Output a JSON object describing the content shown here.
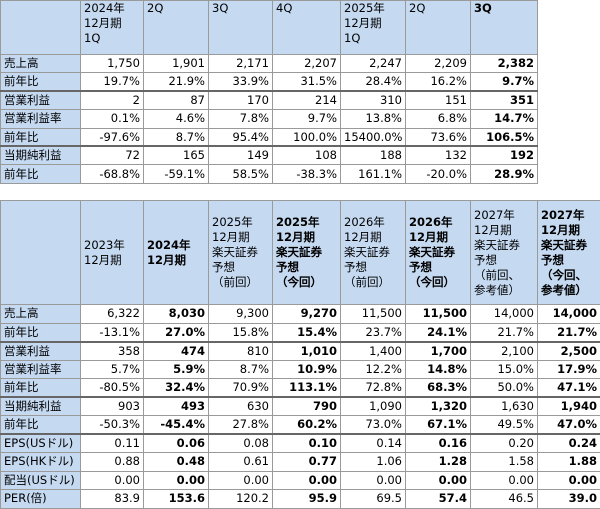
{
  "table1": {
    "header": [
      [
        "2024年",
        "12月期",
        "1Q"
      ],
      [
        "2Q"
      ],
      [
        "3Q"
      ],
      [
        "4Q"
      ],
      [
        "2025年",
        "12月期",
        "1Q"
      ],
      [
        "2Q"
      ],
      [
        "3Q"
      ]
    ],
    "rows": [
      [
        "売上高",
        "1,750",
        "1,901",
        "2,171",
        "2,207",
        "2,247",
        "2,209",
        "2,382"
      ],
      [
        "前年比",
        "19.7%",
        "21.9%",
        "33.9%",
        "31.5%",
        "28.4%",
        "16.2%",
        "9.7%"
      ],
      [
        "営業利益",
        "2",
        "87",
        "170",
        "214",
        "310",
        "151",
        "351"
      ],
      [
        "営業利益率",
        "0.1%",
        "4.6%",
        "7.8%",
        "9.7%",
        "13.8%",
        "6.8%",
        "14.7%"
      ],
      [
        "前年比",
        "-97.6%",
        "8.7%",
        "95.4%",
        "100.0%",
        "15400.0%",
        "73.6%",
        "106.5%"
      ],
      [
        "当期純利益",
        "72",
        "165",
        "149",
        "108",
        "188",
        "132",
        "192"
      ],
      [
        "前年比",
        "-68.8%",
        "-59.1%",
        "58.5%",
        "-38.3%",
        "161.1%",
        "-20.0%",
        "28.9%"
      ]
    ]
  },
  "table2": {
    "header": [
      [
        "2023年",
        "12月期"
      ],
      [
        "2024年",
        "12月期"
      ],
      [
        "2025年",
        "12月期",
        "楽天証券",
        "予想",
        "（前回）"
      ],
      [
        "2025年",
        "12月期",
        "楽天証券",
        "予想",
        "（今回）"
      ],
      [
        "2026年",
        "12月期",
        "楽天証券",
        "予想",
        "（前回）"
      ],
      [
        "2026年",
        "12月期",
        "楽天証券",
        "予想",
        "（今回）"
      ],
      [
        "2027年",
        "12月期",
        "楽天証券",
        "予想",
        "（前回、",
        "参考値）"
      ],
      [
        "2027年",
        "12月期",
        "楽天証券",
        "予想",
        "（今回、",
        "参考値）"
      ]
    ],
    "rows": [
      [
        "売上高",
        "6,322",
        "8,030",
        "9,300",
        "9,270",
        "11,500",
        "11,500",
        "14,000",
        "14,000"
      ],
      [
        "前年比",
        "-13.1%",
        "27.0%",
        "15.8%",
        "15.4%",
        "23.7%",
        "24.1%",
        "21.7%",
        "21.7%"
      ],
      [
        "営業利益",
        "358",
        "474",
        "810",
        "1,010",
        "1,400",
        "1,700",
        "2,100",
        "2,500"
      ],
      [
        "営業利益率",
        "5.7%",
        "5.9%",
        "8.7%",
        "10.9%",
        "12.2%",
        "14.8%",
        "15.0%",
        "17.9%"
      ],
      [
        "前年比",
        "-80.5%",
        "32.4%",
        "70.9%",
        "113.1%",
        "72.8%",
        "68.3%",
        "50.0%",
        "47.1%"
      ],
      [
        "当期純利益",
        "903",
        "493",
        "630",
        "790",
        "1,090",
        "1,320",
        "1,630",
        "1,940"
      ],
      [
        "前年比",
        "-50.3%",
        "-45.4%",
        "27.8%",
        "60.2%",
        "73.0%",
        "67.1%",
        "49.5%",
        "47.0%"
      ],
      [
        "EPS(USドル)",
        "0.11",
        "0.06",
        "0.08",
        "0.10",
        "0.14",
        "0.16",
        "0.20",
        "0.24"
      ],
      [
        "EPS(HKドル)",
        "0.88",
        "0.48",
        "0.61",
        "0.77",
        "1.06",
        "1.28",
        "1.58",
        "1.88"
      ],
      [
        "配当(USドル)",
        "0.00",
        "0.00",
        "0.00",
        "0.00",
        "0.00",
        "0.00",
        "0.00",
        "0.00"
      ],
      [
        "PER(倍)",
        "83.9",
        "153.6",
        "120.2",
        "95.9",
        "69.5",
        "57.4",
        "46.5",
        "39.0"
      ]
    ]
  }
}
